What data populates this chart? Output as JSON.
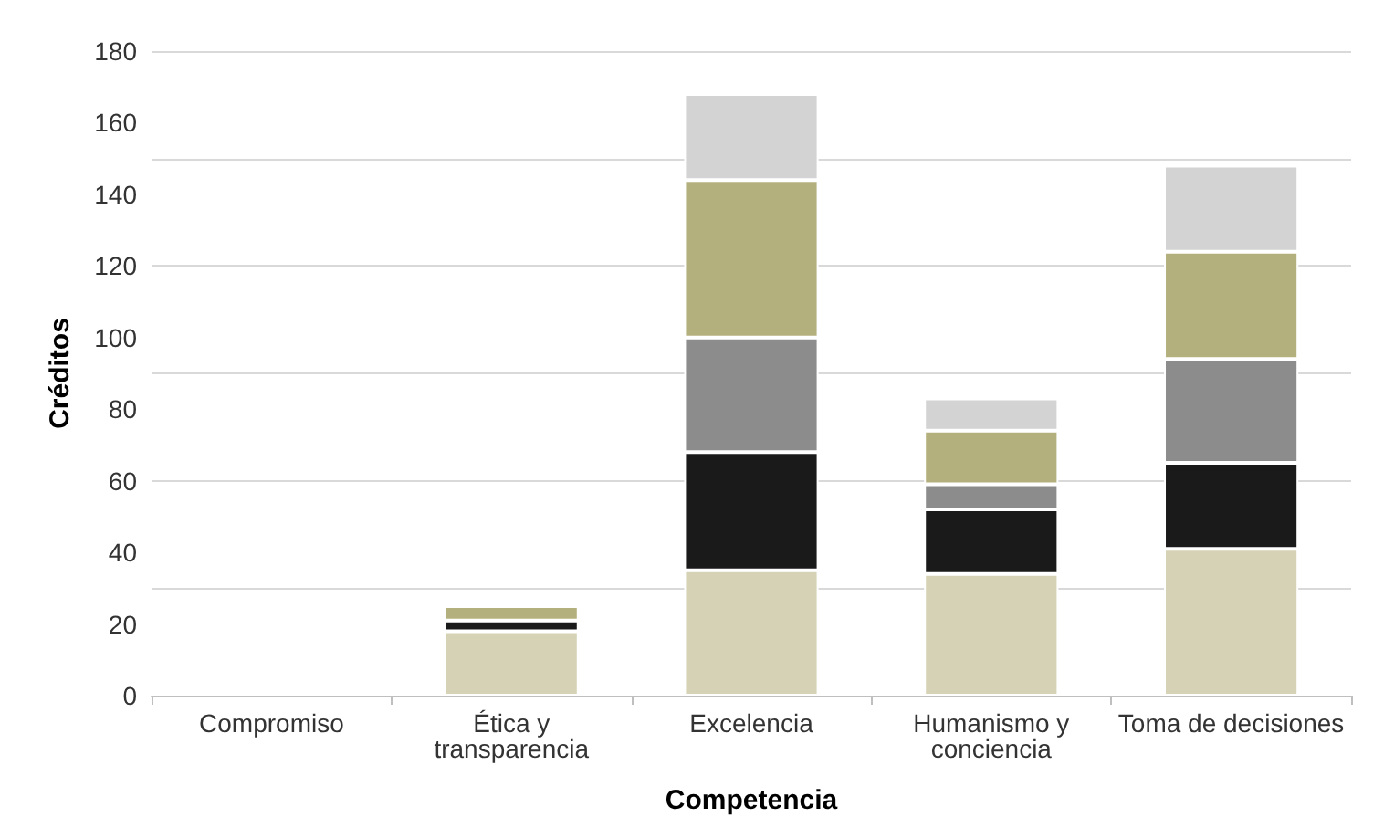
{
  "chart_data": {
    "type": "bar",
    "stacked": true,
    "xlabel": "Competencia",
    "ylabel": "Créditos",
    "categories": [
      "Compromiso",
      "Ética y\ntransparencia",
      "Excelencia",
      "Humanismo y\nconciencia",
      "Toma de decisiones"
    ],
    "series": [
      {
        "color": "#d6d2b6",
        "values": [
          null,
          18,
          35,
          34,
          41
        ]
      },
      {
        "color": "#1a1a1a",
        "values": [
          null,
          3,
          33,
          18,
          24
        ]
      },
      {
        "color": "#8c8c8c",
        "values": [
          null,
          null,
          32,
          7,
          29
        ]
      },
      {
        "color": "#b4b07e",
        "values": [
          null,
          4,
          44,
          15,
          30
        ]
      },
      {
        "color": "#d3d3d3",
        "values": [
          null,
          null,
          24,
          9,
          24
        ]
      }
    ],
    "ylim": [
      0,
      180
    ],
    "yticks": [
      0,
      20,
      40,
      60,
      80,
      100,
      120,
      140,
      160,
      180
    ],
    "grid": "y"
  }
}
